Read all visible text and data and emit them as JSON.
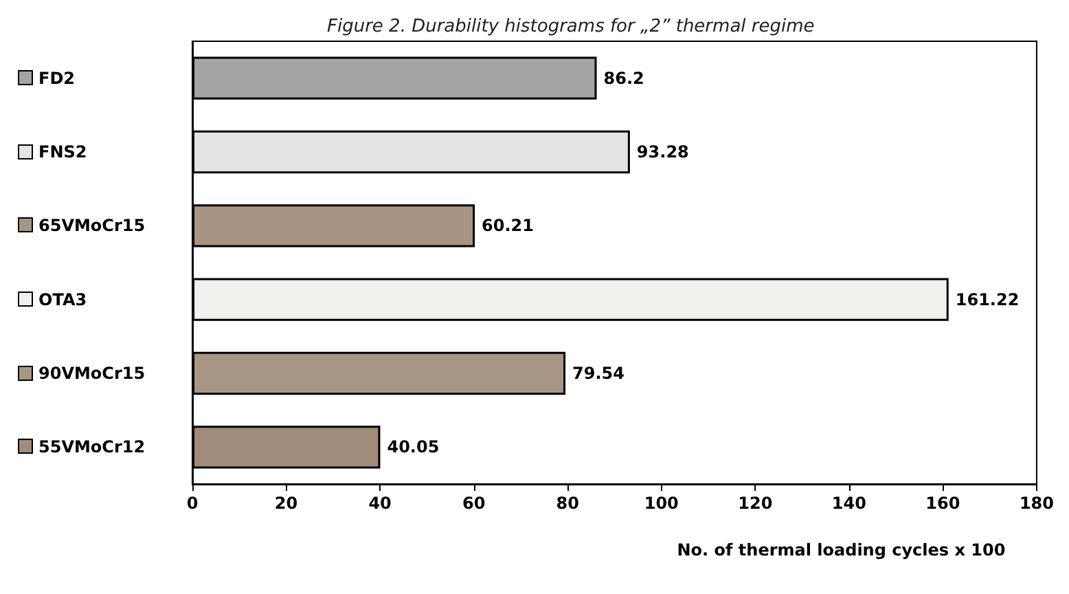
{
  "chart_data": {
    "type": "bar",
    "orientation": "horizontal",
    "title": "Figure 2. Durability histograms for „2” thermal regime",
    "xlabel": "No. of thermal loading cycles x 100",
    "categories": [
      "FD2",
      "FNS2",
      "65VMoCr15",
      "OTA3",
      "90VMoCr15",
      "55VMoCr12"
    ],
    "values": [
      86.2,
      93.28,
      60.21,
      161.22,
      79.54,
      40.05
    ],
    "colors": [
      "#a4a4a4",
      "#e4e4e4",
      "#a89482",
      "#f0f0ec",
      "#a89684",
      "#a08c7a"
    ],
    "xlim": [
      0,
      180
    ],
    "xticks": [
      0,
      20,
      40,
      60,
      80,
      100,
      120,
      140,
      160,
      180
    ],
    "data_labels": true
  }
}
